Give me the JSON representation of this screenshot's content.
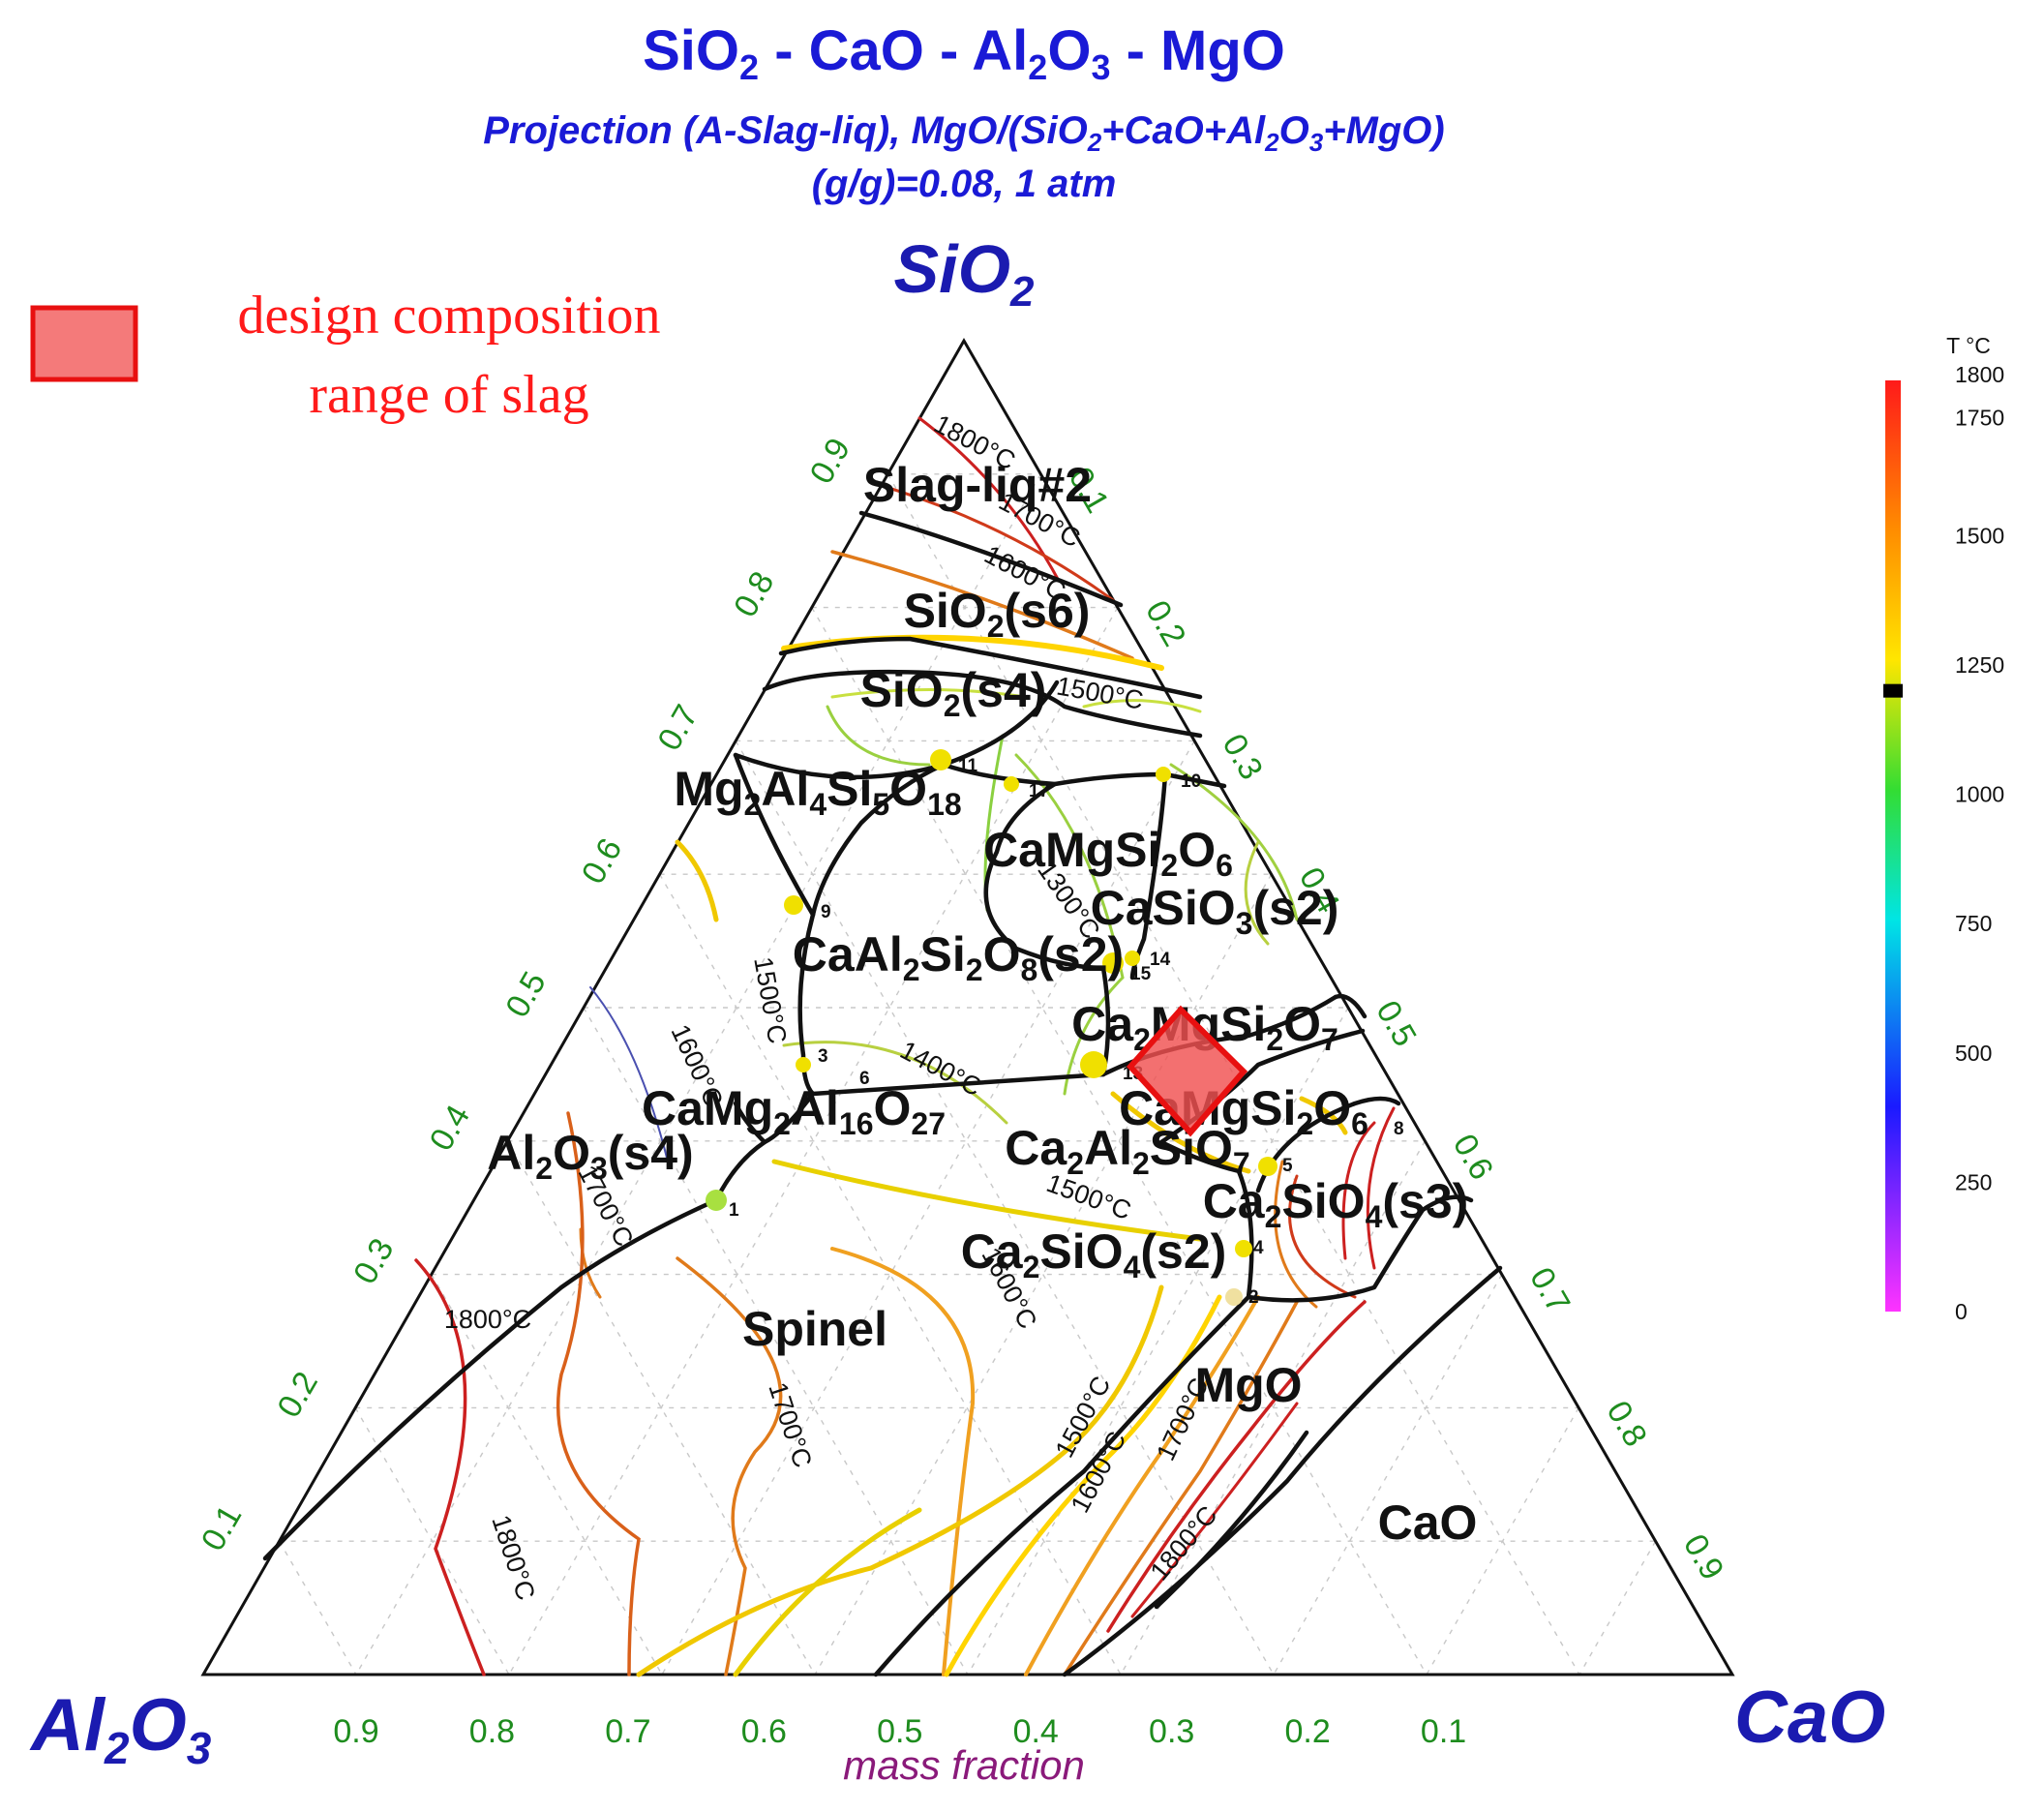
{
  "title": {
    "main": "SiO2 - CaO - Al2O3 - MgO",
    "subtitle_line1": "Projection (A-Slag-liq), MgO/(SiO2+CaO+Al2O3+MgO)",
    "subtitle_line2": "(g/g)=0.08, 1 atm"
  },
  "legend": {
    "label_line1": "design composition",
    "label_line2": "range of slag",
    "swatch_color": "#f47a7a"
  },
  "corners": {
    "top": "SiO2",
    "left": "Al2O3",
    "right": "CaO"
  },
  "axis_caption": "mass fraction",
  "ticks": [
    "0.1",
    "0.2",
    "0.3",
    "0.4",
    "0.5",
    "0.6",
    "0.7",
    "0.8",
    "0.9"
  ],
  "phases": [
    {
      "key": "slag",
      "label": "Slag-liq#2"
    },
    {
      "key": "sio2s6",
      "label": "SiO2(s6)"
    },
    {
      "key": "sio2s4",
      "label": "SiO2(s4)"
    },
    {
      "key": "cordierite",
      "label": "Mg2Al4Si5O18"
    },
    {
      "key": "diopside",
      "label": "CaMgSi2O6"
    },
    {
      "key": "casio3",
      "label": "CaSiO3(s2)"
    },
    {
      "key": "anorthite",
      "label": "CaAl2Si2O8(s2)"
    },
    {
      "key": "akermanite",
      "label": "Ca2MgSi2O7"
    },
    {
      "key": "camg2al",
      "label": "CaMg2Al16O27"
    },
    {
      "key": "monticellite",
      "label": "CaMgSi2O6"
    },
    {
      "key": "gehlenite",
      "label": "Ca2Al2SiO7"
    },
    {
      "key": "alumina",
      "label": "Al2O3(s4)"
    },
    {
      "key": "ca2sio4s3",
      "label": "Ca2SiO4(s3)"
    },
    {
      "key": "ca2sio4s2",
      "label": "Ca2SiO4(s2)"
    },
    {
      "key": "spinel",
      "label": "Spinel"
    },
    {
      "key": "mgo",
      "label": "MgO"
    },
    {
      "key": "cao",
      "label": "CaO"
    }
  ],
  "isotherm_labels": [
    "1800°C",
    "1700°C",
    "1600°C",
    "1500°C",
    "1300°C",
    "1400°C",
    "1500°C",
    "1600°C",
    "1700°C",
    "1800°C",
    "1500°C",
    "1600°C",
    "1700°C",
    "1500°C",
    "1600°C",
    "1700°C",
    "1800°C",
    "1800°C"
  ],
  "invariant_points": [
    "1",
    "2",
    "3",
    "4",
    "5",
    "6",
    "8",
    "9",
    "10",
    "11",
    "13",
    "14",
    "15",
    "17"
  ],
  "colorbar": {
    "title": "T °C",
    "labels": [
      "1800",
      "1750",
      "1500",
      "1250",
      "1000",
      "750",
      "500",
      "250",
      "0"
    ],
    "marker_value": 1200,
    "colors": [
      "#ff1a1a",
      "#ff8c00",
      "#ffe600",
      "#33dd33",
      "#00e5e5",
      "#1a1aff",
      "#ff33ff"
    ]
  },
  "design_region": {
    "color": "#f05050",
    "border": "#e81010"
  }
}
